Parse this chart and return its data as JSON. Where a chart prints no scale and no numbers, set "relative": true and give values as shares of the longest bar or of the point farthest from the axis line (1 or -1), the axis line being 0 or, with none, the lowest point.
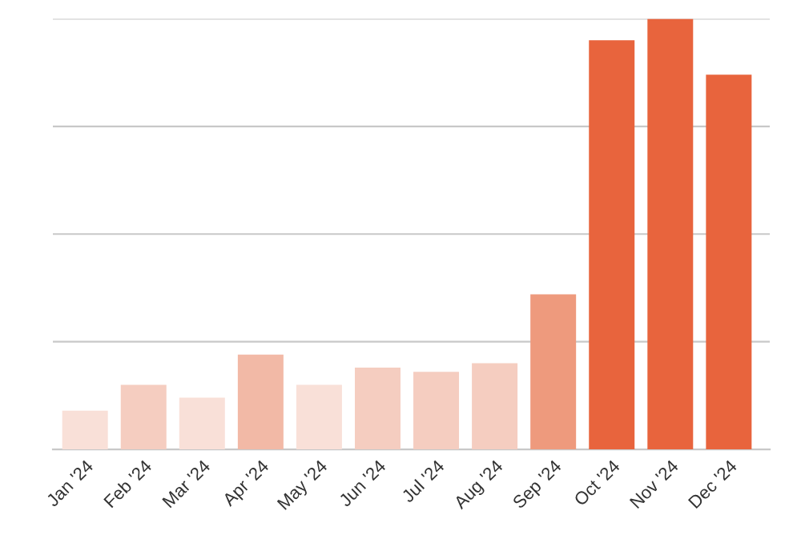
{
  "chart_data": {
    "type": "bar",
    "relative": true,
    "grid": "y",
    "categories": [
      "Jan '24",
      "Feb '24",
      "Mar '24",
      "Apr '24",
      "May '24",
      "Jun '24",
      "Jul '24",
      "Aug '24",
      "Sep '24",
      "Oct '24",
      "Nov '24",
      "Dec '24"
    ],
    "values": [
      0.09,
      0.15,
      0.12,
      0.22,
      0.15,
      0.19,
      0.18,
      0.2,
      0.36,
      0.95,
      1,
      0.87
    ],
    "colors": [
      "#f9e0d8",
      "#f5cdc0",
      "#f9e0d8",
      "#f2b9a6",
      "#f9e0d8",
      "#f5cdc0",
      "#f5cdc0",
      "#f5cdc0",
      "#ee9a7d",
      "#e8643d",
      "#e8643d",
      "#e8643d"
    ]
  }
}
